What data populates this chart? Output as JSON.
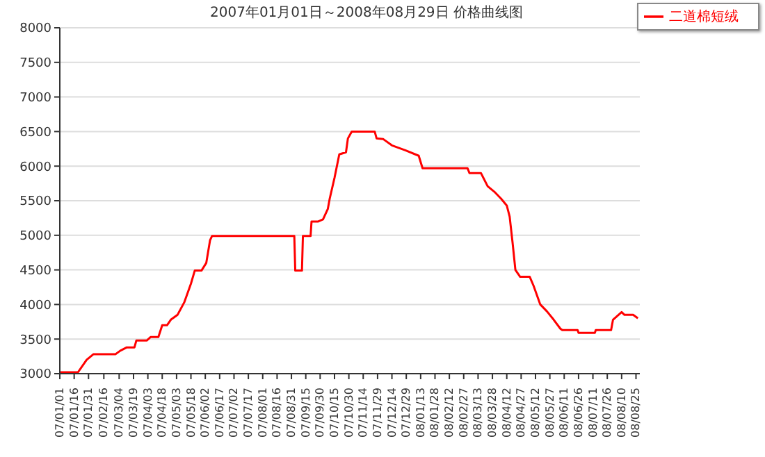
{
  "chart_data": {
    "type": "line",
    "title": "2007年01月01日～2008年08月29日 价格曲线图",
    "x": [
      "2007-01-01",
      "2007-01-20",
      "2007-01-29",
      "2007-02-05",
      "2007-02-28",
      "2007-03-05",
      "2007-03-12",
      "2007-03-20",
      "2007-03-22",
      "2007-04-02",
      "2007-04-06",
      "2007-04-14",
      "2007-04-18",
      "2007-04-23",
      "2007-04-27",
      "2007-05-04",
      "2007-05-11",
      "2007-05-18",
      "2007-05-22",
      "2007-05-29",
      "2007-06-03",
      "2007-06-07",
      "2007-06-09",
      "2007-09-03",
      "2007-09-04",
      "2007-09-11",
      "2007-09-12",
      "2007-09-20",
      "2007-09-21",
      "2007-09-28",
      "2007-10-03",
      "2007-10-08",
      "2007-10-10",
      "2007-10-15",
      "2007-10-20",
      "2007-10-27",
      "2007-10-29",
      "2007-11-02",
      "2007-11-26",
      "2007-11-28",
      "2007-12-05",
      "2007-12-14",
      "2007-12-28",
      "2008-01-11",
      "2008-01-15",
      "2008-03-02",
      "2008-03-04",
      "2008-03-16",
      "2008-03-23",
      "2008-03-30",
      "2008-04-06",
      "2008-04-12",
      "2008-04-15",
      "2008-04-18",
      "2008-04-21",
      "2008-04-26",
      "2008-05-06",
      "2008-05-10",
      "2008-05-17",
      "2008-05-24",
      "2008-05-31",
      "2008-06-07",
      "2008-06-09",
      "2008-06-25",
      "2008-06-26",
      "2008-07-13",
      "2008-07-14",
      "2008-07-30",
      "2008-08-01",
      "2008-08-10",
      "2008-08-13",
      "2008-08-22",
      "2008-08-27"
    ],
    "series": [
      {
        "name": "二道棉短绒",
        "color": "#ff0000",
        "values": [
          3020,
          3020,
          3200,
          3280,
          3280,
          3330,
          3380,
          3380,
          3480,
          3480,
          3530,
          3530,
          3700,
          3700,
          3780,
          3850,
          4030,
          4300,
          4490,
          4490,
          4600,
          4930,
          4990,
          4990,
          4490,
          4490,
          4990,
          4990,
          5200,
          5200,
          5230,
          5380,
          5530,
          5830,
          6170,
          6200,
          6400,
          6500,
          6500,
          6400,
          6390,
          6300,
          6230,
          6150,
          5970,
          5970,
          5900,
          5900,
          5710,
          5630,
          5530,
          5430,
          5270,
          4900,
          4500,
          4400,
          4400,
          4270,
          4000,
          3900,
          3780,
          3650,
          3630,
          3630,
          3590,
          3590,
          3630,
          3630,
          3780,
          3890,
          3850,
          3850,
          3800
        ]
      }
    ],
    "xlim": [
      "2007-01-01",
      "2008-08-29"
    ],
    "xticks": [
      {
        "value": "2007-01-01",
        "label": "07/01/01"
      },
      {
        "value": "2007-01-16",
        "label": "07/01/16"
      },
      {
        "value": "2007-01-31",
        "label": "07/01/31"
      },
      {
        "value": "2007-02-16",
        "label": "07/02/16"
      },
      {
        "value": "2007-03-04",
        "label": "07/03/04"
      },
      {
        "value": "2007-03-19",
        "label": "07/03/19"
      },
      {
        "value": "2007-04-03",
        "label": "07/04/03"
      },
      {
        "value": "2007-04-18",
        "label": "07/04/18"
      },
      {
        "value": "2007-05-03",
        "label": "07/05/03"
      },
      {
        "value": "2007-05-18",
        "label": "07/05/18"
      },
      {
        "value": "2007-06-02",
        "label": "07/06/02"
      },
      {
        "value": "2007-06-17",
        "label": "07/06/17"
      },
      {
        "value": "2007-07-02",
        "label": "07/07/02"
      },
      {
        "value": "2007-07-17",
        "label": "07/07/17"
      },
      {
        "value": "2007-08-01",
        "label": "07/08/01"
      },
      {
        "value": "2007-08-16",
        "label": "07/08/16"
      },
      {
        "value": "2007-08-31",
        "label": "07/08/31"
      },
      {
        "value": "2007-09-15",
        "label": "07/09/15"
      },
      {
        "value": "2007-09-30",
        "label": "07/09/30"
      },
      {
        "value": "2007-10-15",
        "label": "07/10/15"
      },
      {
        "value": "2007-10-30",
        "label": "07/10/30"
      },
      {
        "value": "2007-11-14",
        "label": "07/11/14"
      },
      {
        "value": "2007-11-29",
        "label": "07/11/29"
      },
      {
        "value": "2007-12-14",
        "label": "07/12/14"
      },
      {
        "value": "2007-12-29",
        "label": "07/12/29"
      },
      {
        "value": "2008-01-13",
        "label": "08/01/13"
      },
      {
        "value": "2008-01-28",
        "label": "08/01/28"
      },
      {
        "value": "2008-02-12",
        "label": "08/02/12"
      },
      {
        "value": "2008-02-27",
        "label": "08/02/27"
      },
      {
        "value": "2008-03-13",
        "label": "08/03/13"
      },
      {
        "value": "2008-03-28",
        "label": "08/03/28"
      },
      {
        "value": "2008-04-12",
        "label": "08/04/12"
      },
      {
        "value": "2008-04-27",
        "label": "08/04/27"
      },
      {
        "value": "2008-05-12",
        "label": "08/05/12"
      },
      {
        "value": "2008-05-27",
        "label": "08/05/27"
      },
      {
        "value": "2008-06-11",
        "label": "08/06/11"
      },
      {
        "value": "2008-06-26",
        "label": "08/06/26"
      },
      {
        "value": "2008-07-11",
        "label": "08/07/11"
      },
      {
        "value": "2008-07-26",
        "label": "08/07/26"
      },
      {
        "value": "2008-08-10",
        "label": "08/08/10"
      },
      {
        "value": "2008-08-25",
        "label": "08/08/25"
      }
    ],
    "ylim": [
      3000,
      8000
    ],
    "yticks": [
      3000,
      3500,
      4000,
      4500,
      5000,
      5500,
      6000,
      6500,
      7000,
      7500,
      8000
    ],
    "grid": "y",
    "legend": "top right",
    "marker": "none",
    "line_style": "solid"
  }
}
